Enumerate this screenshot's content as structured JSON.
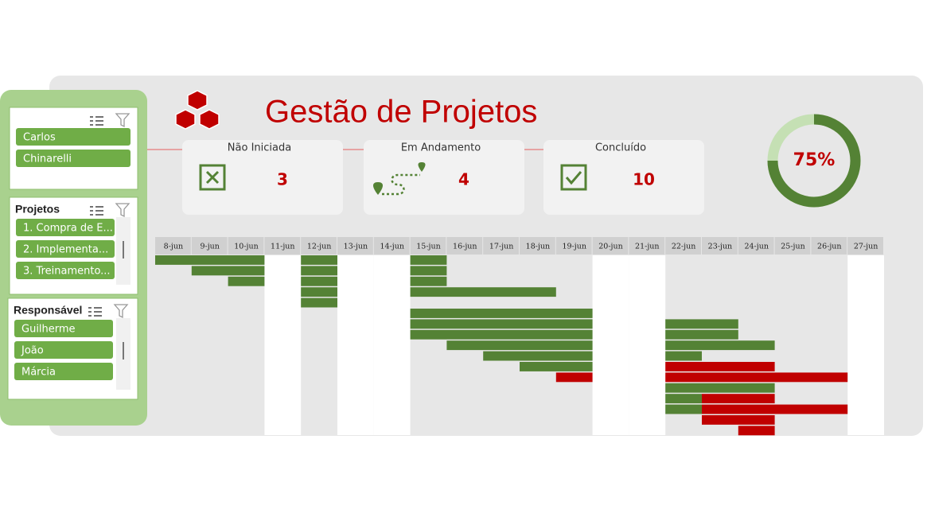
{
  "header": {
    "title": "Gestão de Projetos"
  },
  "kpis": [
    {
      "label": "Não Iniciada",
      "value": "3"
    },
    {
      "label": "Em Andamento",
      "value": "4"
    },
    {
      "label": "Concluído",
      "value": "10"
    }
  ],
  "progress": {
    "value": 75,
    "label": "75%"
  },
  "slicers": [
    {
      "items": [
        "Carlos",
        "Chinarelli"
      ]
    },
    {
      "title": "Projetos",
      "items": [
        "1. Compra de E...",
        "2. Implementa...",
        "3. Treinamento..."
      ]
    },
    {
      "title": "Responsável",
      "items": [
        "Guilherme",
        "João",
        "Márcia"
      ]
    }
  ],
  "gantt": {
    "dates": [
      "8-jun",
      "9-jun",
      "10-jun",
      "11-jun",
      "12-jun",
      "13-jun",
      "14-jun",
      "15-jun",
      "16-jun",
      "17-jun",
      "18-jun",
      "19-jun",
      "20-jun",
      "21-jun",
      "22-jun",
      "23-jun",
      "24-jun",
      "25-jun",
      "26-jun",
      "27-jun"
    ],
    "white_columns": [
      3,
      5,
      6,
      12,
      13,
      19
    ],
    "bars": [
      {
        "row": 0,
        "start": 0,
        "end": 2,
        "color": "#548235"
      },
      {
        "row": 0,
        "start": 4,
        "end": 4,
        "color": "#548235"
      },
      {
        "row": 0,
        "start": 7,
        "end": 7,
        "color": "#548235"
      },
      {
        "row": 1,
        "start": 1,
        "end": 2,
        "color": "#548235"
      },
      {
        "row": 1,
        "start": 4,
        "end": 4,
        "color": "#548235"
      },
      {
        "row": 1,
        "start": 7,
        "end": 7,
        "color": "#548235"
      },
      {
        "row": 2,
        "start": 2,
        "end": 2,
        "color": "#548235"
      },
      {
        "row": 2,
        "start": 4,
        "end": 4,
        "color": "#548235"
      },
      {
        "row": 2,
        "start": 7,
        "end": 7,
        "color": "#548235"
      },
      {
        "row": 3,
        "start": 4,
        "end": 4,
        "color": "#548235"
      },
      {
        "row": 3,
        "start": 7,
        "end": 10,
        "color": "#548235"
      },
      {
        "row": 4,
        "start": 4,
        "end": 4,
        "color": "#548235"
      },
      {
        "row": 5,
        "start": 7,
        "end": 11,
        "color": "#548235"
      },
      {
        "row": 6,
        "start": 7,
        "end": 11,
        "color": "#548235"
      },
      {
        "row": 6,
        "start": 14,
        "end": 15,
        "color": "#548235"
      },
      {
        "row": 7,
        "start": 7,
        "end": 11,
        "color": "#548235"
      },
      {
        "row": 7,
        "start": 14,
        "end": 15,
        "color": "#548235"
      },
      {
        "row": 8,
        "start": 8,
        "end": 11,
        "color": "#548235"
      },
      {
        "row": 8,
        "start": 14,
        "end": 16,
        "color": "#548235"
      },
      {
        "row": 9,
        "start": 9,
        "end": 11,
        "color": "#548235"
      },
      {
        "row": 9,
        "start": 14,
        "end": 14,
        "color": "#548235"
      },
      {
        "row": 10,
        "start": 10,
        "end": 11,
        "color": "#548235"
      },
      {
        "row": 10,
        "start": 14,
        "end": 16,
        "color": "#c00000"
      },
      {
        "row": 11,
        "start": 11,
        "end": 11,
        "color": "#c00000"
      },
      {
        "row": 11,
        "start": 14,
        "end": 18,
        "color": "#c00000"
      },
      {
        "row": 12,
        "start": 14,
        "end": 16,
        "color": "#548235"
      },
      {
        "row": 13,
        "start": 14,
        "end": 14,
        "color": "#548235"
      },
      {
        "row": 13,
        "start": 15,
        "end": 16,
        "color": "#c00000"
      },
      {
        "row": 14,
        "start": 14,
        "end": 14,
        "color": "#548235"
      },
      {
        "row": 14,
        "start": 15,
        "end": 18,
        "color": "#c00000"
      },
      {
        "row": 15,
        "start": 15,
        "end": 16,
        "color": "#c00000"
      },
      {
        "row": 16,
        "start": 16,
        "end": 16,
        "color": "#c00000"
      }
    ]
  }
}
